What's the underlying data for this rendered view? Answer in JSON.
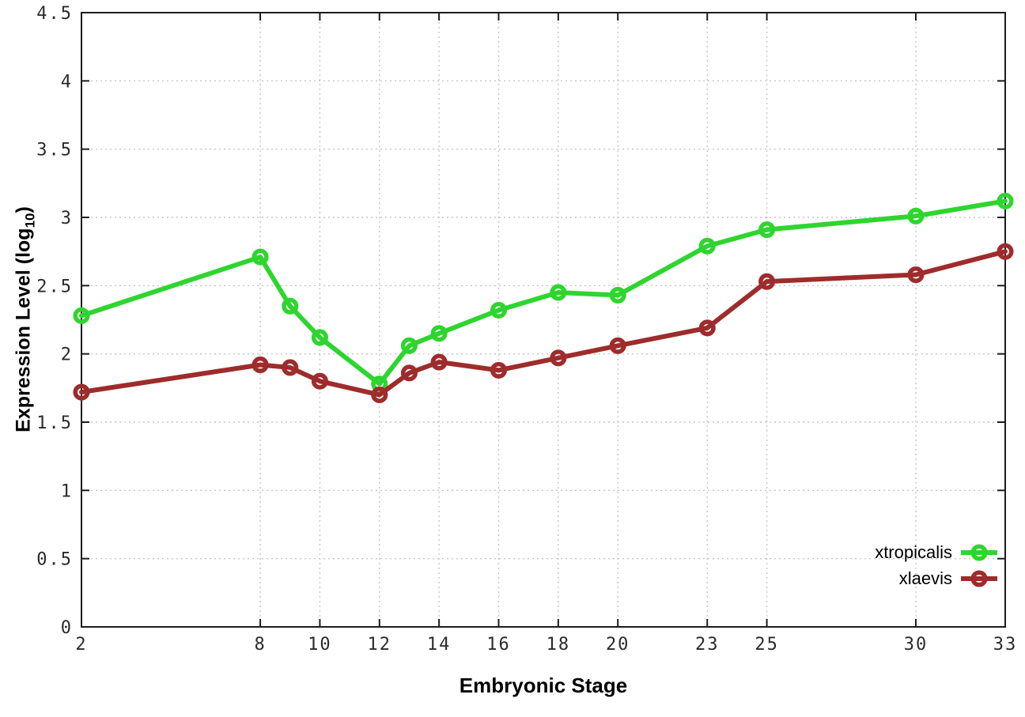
{
  "chart_data": {
    "type": "line",
    "title": "",
    "xlabel": "Embryonic Stage",
    "ylabel_prefix": "Expression Level (log",
    "ylabel_sub": "10",
    "ylabel_suffix": ")",
    "x": [
      2,
      8,
      9,
      10,
      12,
      13,
      14,
      16,
      18,
      20,
      23,
      25,
      30,
      33
    ],
    "xticks": [
      2,
      8,
      10,
      12,
      14,
      16,
      18,
      20,
      23,
      25,
      30,
      33
    ],
    "yticks": [
      0,
      0.5,
      1,
      1.5,
      2,
      2.5,
      3,
      3.5,
      4,
      4.5
    ],
    "xlim": [
      2,
      33
    ],
    "ylim": [
      0,
      4.5
    ],
    "grid": true,
    "legend_position": "bottom-right",
    "series": [
      {
        "name": "xtropicalis",
        "color": "#2fd52f",
        "values": [
          2.28,
          2.71,
          2.35,
          2.12,
          1.78,
          2.06,
          2.15,
          2.32,
          2.45,
          2.43,
          2.79,
          2.91,
          3.01,
          3.12
        ]
      },
      {
        "name": "xlaevis",
        "color": "#9e2c2c",
        "values": [
          1.72,
          1.92,
          1.9,
          1.8,
          1.7,
          1.86,
          1.94,
          1.88,
          1.97,
          2.06,
          2.19,
          2.53,
          2.58,
          2.75
        ]
      }
    ]
  },
  "style_colors": {
    "grid": "#c6c6c6",
    "border": "#1c1c1c",
    "tick_text": "#2b2b2b"
  }
}
